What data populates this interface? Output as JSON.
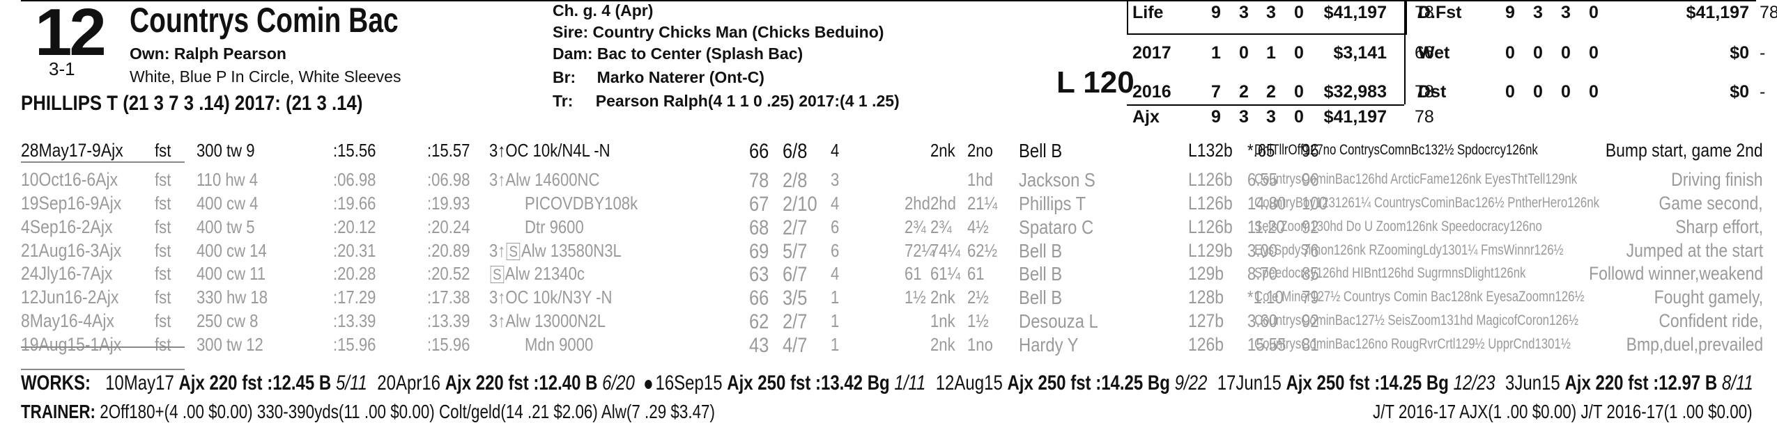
{
  "horse": {
    "program_number": "12",
    "odds": "3-1",
    "name": "Countrys Comin Bac",
    "owner": "Own: Ralph Pearson",
    "silks": "White, Blue P In Circle, White Sleeves",
    "jockey_line": "PHILLIPS T (21 3 7 3 .14) 2017: (21 3 .14)"
  },
  "pedigree": {
    "desc": "Ch. g. 4 (Apr)",
    "sire_label": "Sire:",
    "sire": "Country Chicks Man (Chicks Beduino)",
    "dam_label": "Dam:",
    "dam": "Bac to Center (Splash Bac)",
    "breeder_label": "Br:",
    "breeder": "Marko Naterer (Ont-C)",
    "trainer_label": "Tr:",
    "trainer": "Pearson Ralph(4 1 1 0 .25)  2017:(4 1 .25)"
  },
  "weight_block": "L 120",
  "stats_left": [
    {
      "label": "Life",
      "st": "9",
      "w": "3",
      "p": "3",
      "s": "0",
      "earn": "$41,197",
      "speed": "78"
    },
    {
      "label": "2017",
      "st": "1",
      "w": "0",
      "p": "1",
      "s": "0",
      "earn": "$3,141",
      "speed": "66"
    },
    {
      "label": "2016",
      "st": "7",
      "w": "2",
      "p": "2",
      "s": "0",
      "earn": "$32,983",
      "speed": "78"
    },
    {
      "label": "Ajx",
      "st": "9",
      "w": "3",
      "p": "3",
      "s": "0",
      "earn": "$41,197",
      "speed": "78"
    }
  ],
  "stats_right": [
    {
      "label": "D.Fst",
      "st": "9",
      "w": "3",
      "p": "3",
      "s": "0",
      "earn": "$41,197",
      "speed": "78"
    },
    {
      "label": "Wet",
      "st": "0",
      "w": "0",
      "p": "0",
      "s": "0",
      "earn": "$0",
      "speed": "-"
    },
    {
      "label": "Dst",
      "st": "0",
      "w": "0",
      "p": "0",
      "s": "0",
      "earn": "$0",
      "speed": "-"
    }
  ],
  "races": [
    {
      "date": "28May17-9Ajx",
      "cond": "fst",
      "dist": "300 tw 9",
      "f1": ":15.56",
      "f2": ":15.57",
      "ctype": "3↑OC 10k/N4L -N",
      "sq": "",
      "sf": "66",
      "pp": "6/8",
      "st": "4",
      "c1": "",
      "c2": "2nk",
      "fin": "2no",
      "jockey": "Bell B",
      "wt": "L132b",
      "odds": "*.65",
      "spd": "96",
      "top": "DnlTllrOff127no ContrysComnBc132½ Spdocrcy126nk",
      "comment": "Bump start, game 2nd"
    },
    {
      "date": "10Oct16-6Ajx",
      "cond": "fst",
      "dist": "110 hw 4",
      "f1": ":06.98",
      "f2": ":06.98",
      "ctype": "3↑Alw 14600NC",
      "sq": "",
      "sf": "78",
      "pp": "2/8",
      "st": "3",
      "c1": "",
      "c2": "",
      "fin": "1hd",
      "jockey": "Jackson S",
      "wt": "L126b",
      "odds": "6.55",
      "spd": "96",
      "top": "CountrysCominBac126hd ArcticFame126nk EyesThtTell129nk",
      "comment": "Driving finish"
    },
    {
      "date": "19Sep16-9Ajx",
      "cond": "fst",
      "dist": "400 cw 4",
      "f1": ":19.66",
      "f2": ":19.93",
      "ctype": "PICOVDBY108k",
      "sq": "",
      "sf": "67",
      "pp": "2/10",
      "st": "4",
      "c1": "2hd",
      "c2": "2hd",
      "fin": "21¼",
      "jockey": "Phillips T",
      "wt": "L126b",
      "odds": "14.80",
      "spd": "100",
      "top": "CountryBoy1231261¼ CountrysCominBac126½ PntherHero126nk",
      "comment": "Game second,"
    },
    {
      "date": "4Sep16-2Ajx",
      "cond": "fst",
      "dist": "400 tw 5",
      "f1": ":20.12",
      "f2": ":20.24",
      "ctype": "Dtr 9600",
      "sq": "",
      "sf": "68",
      "pp": "2/7",
      "st": "6",
      "c1": "2¾",
      "c2": "2¾",
      "fin": "4½",
      "jockey": "Spataro C",
      "wt": "L126b",
      "odds": "11.20",
      "spd": "92",
      "top": "Seis Zoom130hd Do U Zoom126nk Speedocracy126no",
      "comment": "Sharp effort,"
    },
    {
      "date": "21Aug16-3Ajx",
      "cond": "fst",
      "dist": "400 cw 14",
      "f1": ":20.31",
      "f2": ":20.89",
      "ctype": "3↑",
      "sq": "S",
      "ctype2": "Alw 13580N3L",
      "sf": "69",
      "pp": "5/7",
      "st": "6",
      "c1": "72¼",
      "c2": "74¼",
      "fin": "62½",
      "jockey": "Bell B",
      "wt": "L129b",
      "odds": "3.00",
      "spd": "76",
      "top": "EysSpdySimon126nk RZoomingLdy1301¼ FmsWinnr126½",
      "comment": "Jumped at the start"
    },
    {
      "date": "24Jly16-7Ajx",
      "cond": "fst",
      "dist": "400 cw 11",
      "f1": ":20.28",
      "f2": ":20.52",
      "ctype": "",
      "sq": "S",
      "ctype2": "Alw 21340c",
      "sf": "63",
      "pp": "6/7",
      "st": "4",
      "c1": "61",
      "c2": "61¼",
      "fin": "61",
      "jockey": "Bell B",
      "wt": "129b",
      "odds": "8.70",
      "spd": "85",
      "top": "Speedocrcy126hd HIBnt126hd SugrmnsDlight126nk",
      "comment": "Followd winner,weakend"
    },
    {
      "date": "12Jun16-2Ajx",
      "cond": "fst",
      "dist": "330 hw 18",
      "f1": ":17.29",
      "f2": ":17.38",
      "ctype": "3↑OC 10k/N3Y -N",
      "sq": "",
      "sf": "66",
      "pp": "3/5",
      "st": "1",
      "c1": "1½",
      "c2": "2nk",
      "fin": "2½",
      "jockey": "Bell B",
      "wt": "128b",
      "odds": "*1.10",
      "spd": "79",
      "top": "Cole Miner127½ Countrys Comin Bac128nk EyesaZoomn126½",
      "comment": "Fought gamely,"
    },
    {
      "date": "8May16-4Ajx",
      "cond": "fst",
      "dist": "250 cw 8",
      "f1": ":13.39",
      "f2": ":13.39",
      "ctype": "3↑Alw 13000N2L",
      "sq": "",
      "sf": "62",
      "pp": "2/7",
      "st": "1",
      "c1": "",
      "c2": "1nk",
      "fin": "1½",
      "jockey": "Desouza L",
      "wt": "127b",
      "odds": "3.60",
      "spd": "92",
      "top": "CountrysCominBac127½ SeisZoom131hd MagicofCoron126½",
      "comment": "Confident ride,"
    },
    {
      "date": "19Aug15-1Ajx",
      "cond": "fst",
      "dist": "300 tw 12",
      "f1": ":15.96",
      "f2": ":15.96",
      "ctype": "Mdn 9000",
      "sq": "",
      "sf": "43",
      "pp": "4/7",
      "st": "1",
      "c1": "",
      "c2": "2nk",
      "fin": "1no",
      "jockey": "Hardy Y",
      "wt": "126b",
      "odds": "15.55",
      "spd": "81",
      "top": "CountrysCominBac126no RougRvrCrtl129½ UpprCnd1301½",
      "comment": "Bmp,duel,prevailed"
    }
  ],
  "works": {
    "label": "WORKS:",
    "items": [
      {
        "bullet": false,
        "date": "10May17",
        "text": "Ajx 220 fst :12.45 B",
        "rank": "5/11"
      },
      {
        "bullet": false,
        "date": "20Apr16",
        "text": "Ajx 220 fst :12.40 B",
        "rank": "6/20"
      },
      {
        "bullet": true,
        "date": "16Sep15",
        "text": "Ajx 250 fst :13.42 Bg",
        "rank": "1/11"
      },
      {
        "bullet": false,
        "date": "12Aug15",
        "text": "Ajx 250 fst :14.25 Bg",
        "rank": "9/22"
      },
      {
        "bullet": false,
        "date": "17Jun15",
        "text": "Ajx 250 fst :14.25 Bg",
        "rank": "12/23"
      },
      {
        "bullet": false,
        "date": "3Jun15",
        "text": "Ajx 220 fst :12.97 B",
        "rank": "8/11"
      }
    ]
  },
  "trainer_stats": {
    "label": "TRAINER:",
    "text": "2Off180+(4 .00 $0.00) 330-390yds(11 .00 $0.00) Colt/geld(14 .21 $2.06) Alw(7 .29 $3.47)",
    "jt": "J/T 2016-17 AJX(1 .00 $0.00)  J/T 2016-17(1 .00 $0.00)"
  }
}
